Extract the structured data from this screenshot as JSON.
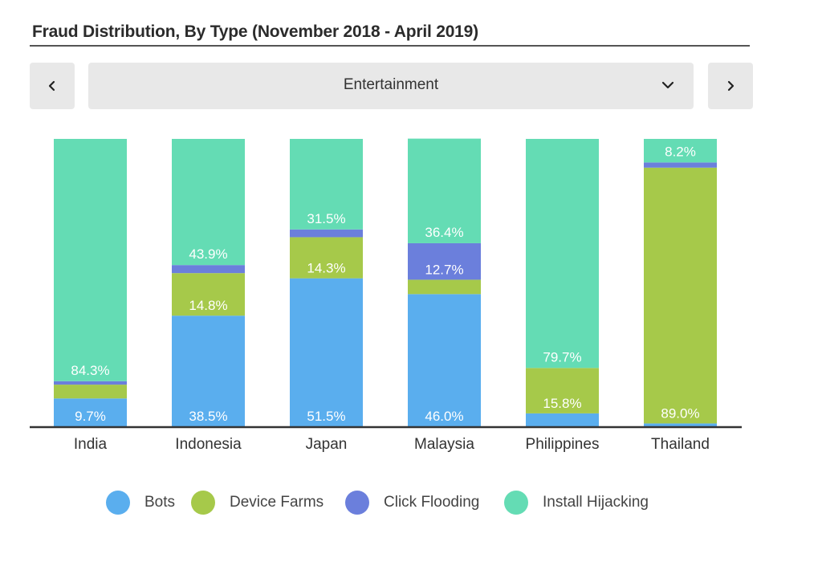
{
  "header": {
    "title": "Fraud Distribution, By Type (November 2018 - April 2019)"
  },
  "controls": {
    "prev_icon": "chevron-left-icon",
    "next_icon": "chevron-right-icon",
    "dropdown_icon": "chevron-down-icon",
    "selected_category": "Entertainment"
  },
  "colors": {
    "bots": "#5aaeee",
    "device_farms": "#a6c94a",
    "click_flooding": "#6b7fdc",
    "install_hijacking": "#64dcb4"
  },
  "chart_data": {
    "type": "bar",
    "stacked": true,
    "normalized": true,
    "ylim": [
      0,
      100
    ],
    "categories": [
      "India",
      "Indonesia",
      "Japan",
      "Malaysia",
      "Philippines",
      "Thailand"
    ],
    "series": [
      {
        "name": "Bots",
        "values": [
          9.7,
          38.5,
          51.5,
          46.0,
          4.5,
          1.0
        ]
      },
      {
        "name": "Device Farms",
        "values": [
          4.8,
          14.8,
          14.3,
          5.0,
          15.8,
          89.0
        ]
      },
      {
        "name": "Click Flooding",
        "values": [
          1.2,
          2.8,
          2.7,
          12.7,
          0.0,
          1.8
        ]
      },
      {
        "name": "Install Hijacking",
        "values": [
          84.3,
          43.9,
          31.5,
          36.4,
          79.7,
          8.2
        ]
      }
    ],
    "data_labels": [
      [
        "9.7%",
        "38.5%",
        "51.5%",
        "46.0%",
        "",
        ""
      ],
      [
        "",
        "14.8%",
        "14.3%",
        "",
        "15.8%",
        "89.0%"
      ],
      [
        "",
        "",
        "",
        "12.7%",
        "",
        ""
      ],
      [
        "84.3%",
        "43.9%",
        "31.5%",
        "36.4%",
        "79.7%",
        "8.2%"
      ]
    ],
    "legend": [
      "Bots",
      "Device Farms",
      "Click Flooding",
      "Install Hijacking"
    ],
    "legend_position": "bottom",
    "grid": false
  }
}
